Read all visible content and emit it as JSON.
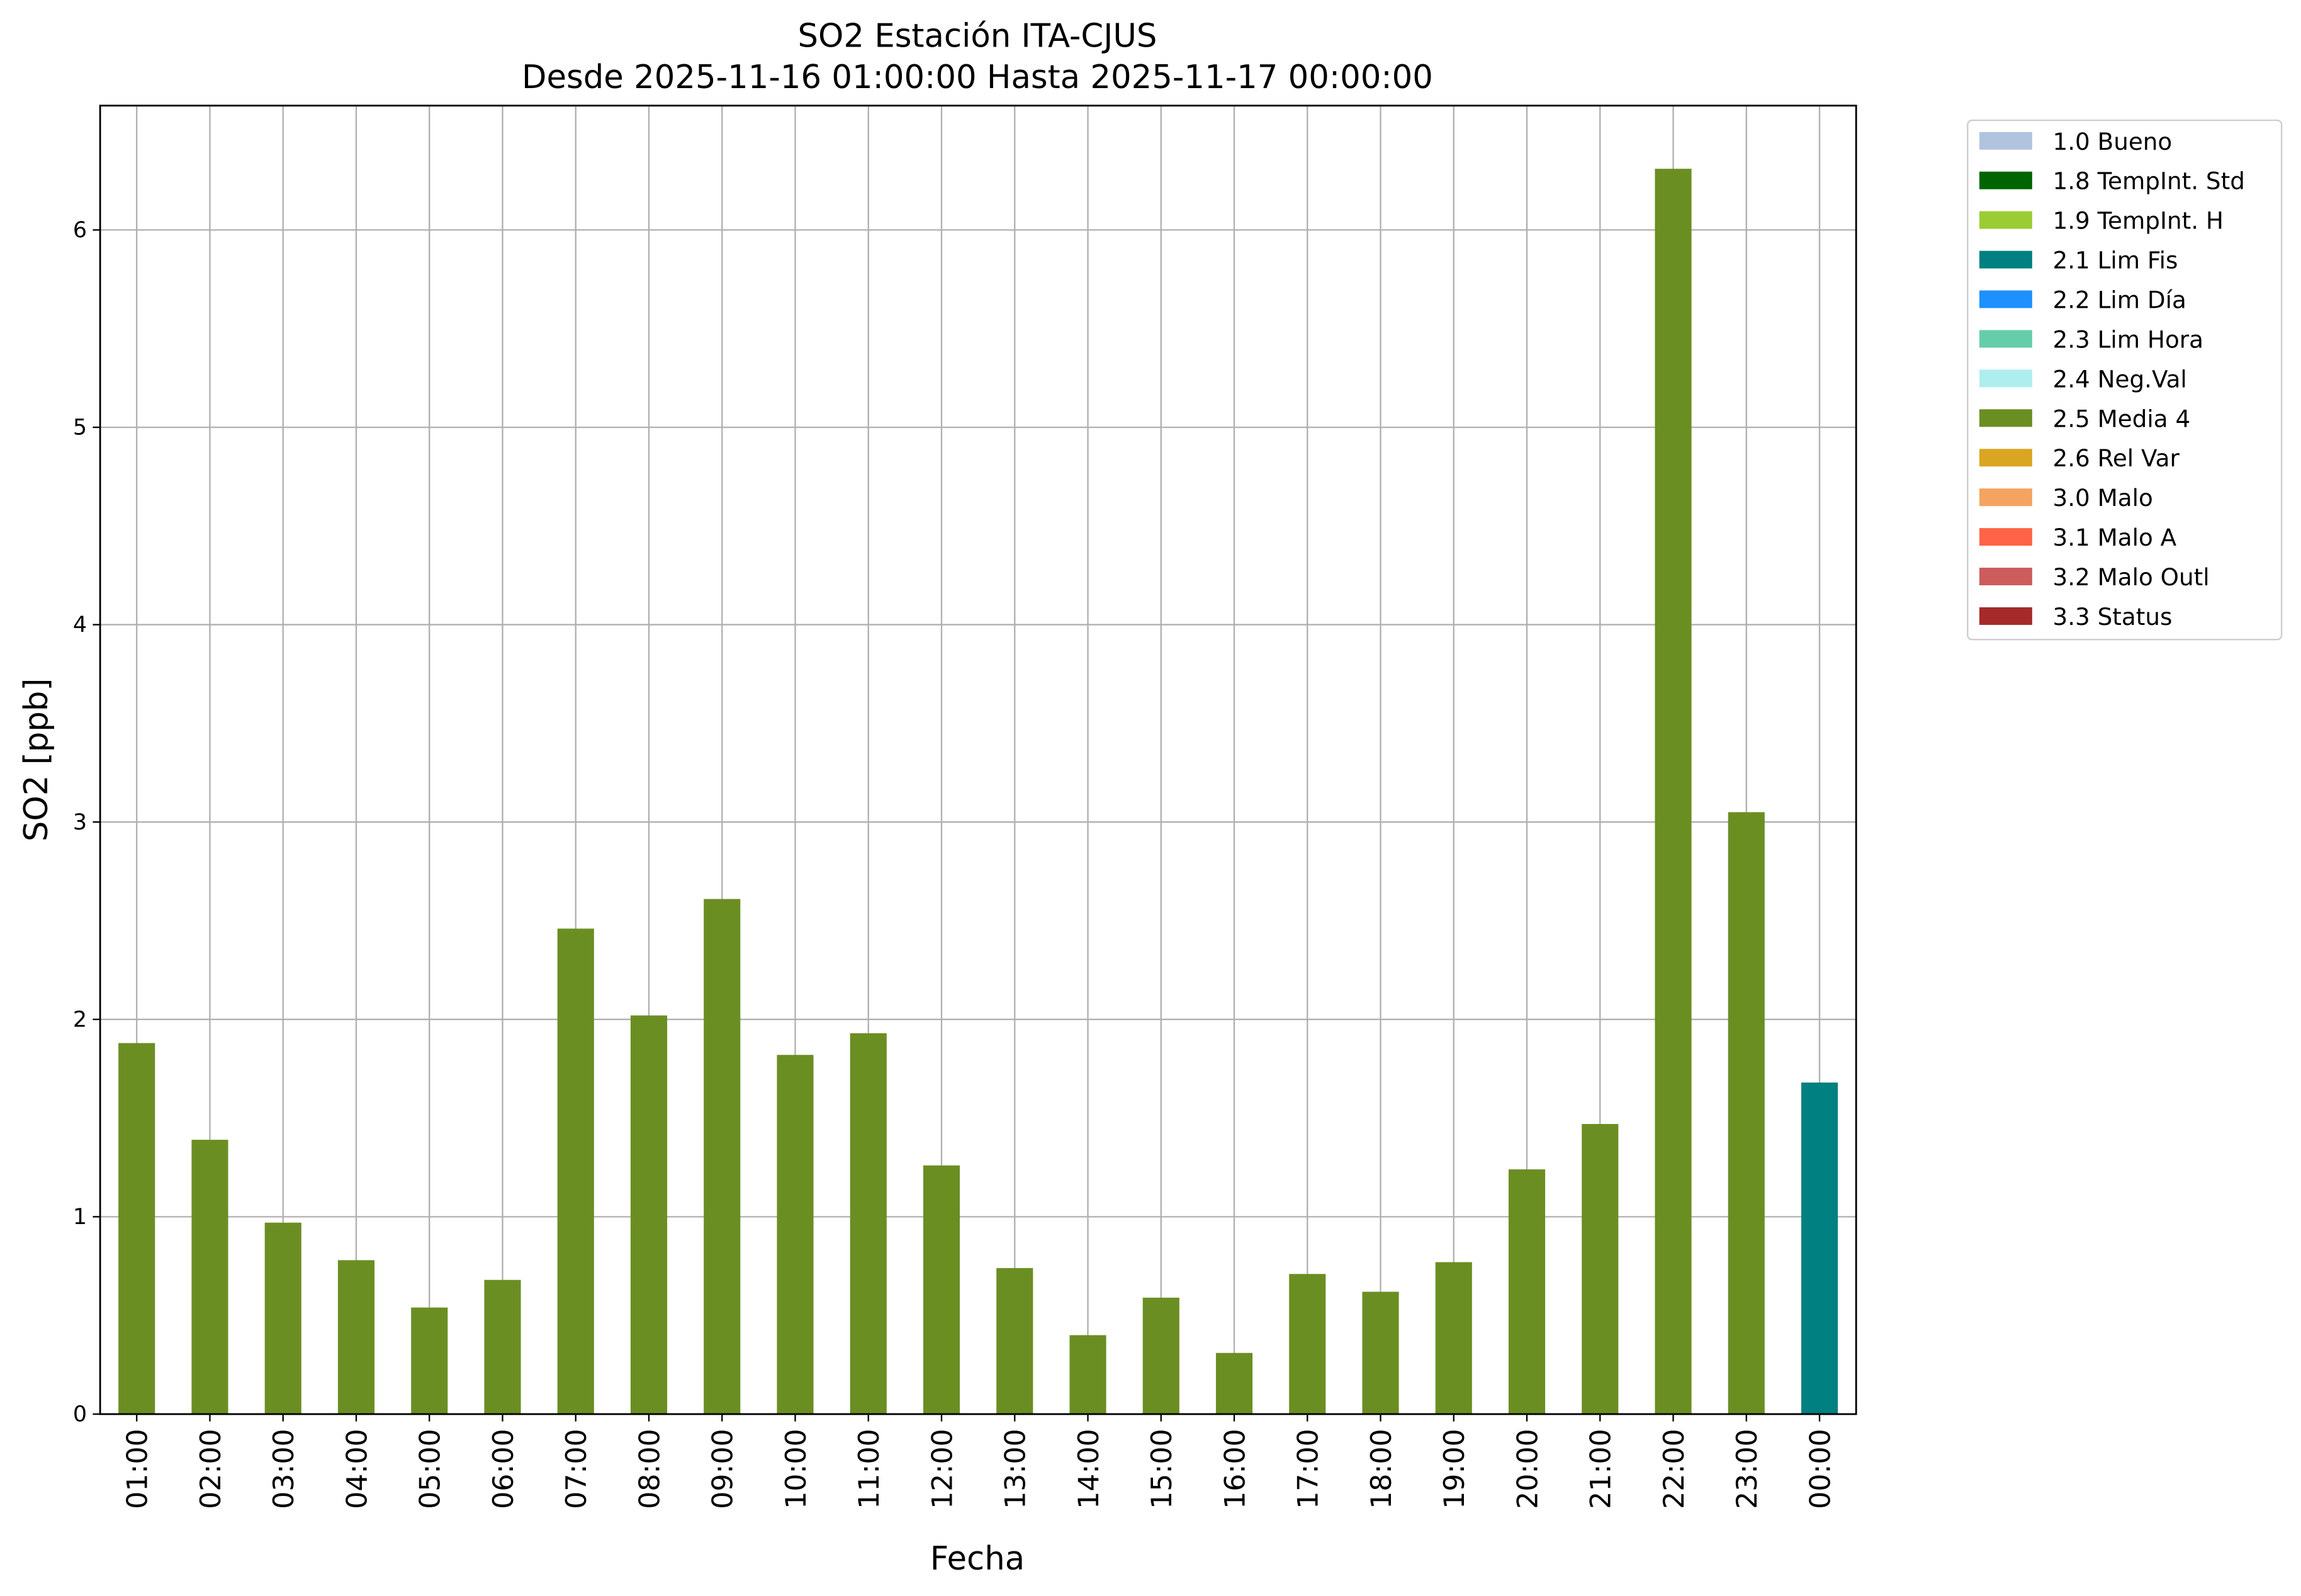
{
  "chart_data": {
    "type": "bar",
    "stacked": true,
    "title": "SO2 Estación ITA-CJUS",
    "subtitle": "Desde 2025-11-16 01:00:00 Hasta 2025-11-17 00:00:00",
    "x_label": "Fecha",
    "y_label": "SO2 [ppb]",
    "categories": [
      "01:00",
      "02:00",
      "03:00",
      "04:00",
      "05:00",
      "06:00",
      "07:00",
      "08:00",
      "09:00",
      "10:00",
      "11:00",
      "12:00",
      "13:00",
      "14:00",
      "15:00",
      "16:00",
      "17:00",
      "18:00",
      "19:00",
      "20:00",
      "21:00",
      "22:00",
      "23:00",
      "00:00"
    ],
    "ylim": [
      0,
      6.63
    ],
    "yticks": [
      0,
      1,
      2,
      3,
      4,
      5,
      6
    ],
    "grid": true,
    "legend": "outside-upper-right",
    "series": [
      {
        "name": "1.0 Bueno",
        "color": "#b0c4de",
        "values": [
          null,
          null,
          null,
          null,
          null,
          null,
          null,
          null,
          null,
          null,
          null,
          null,
          null,
          null,
          null,
          null,
          null,
          null,
          null,
          null,
          null,
          null,
          null,
          null
        ]
      },
      {
        "name": "1.8 TempInt. Std",
        "color": "#006400",
        "values": [
          null,
          null,
          null,
          null,
          null,
          null,
          null,
          null,
          null,
          null,
          null,
          null,
          null,
          null,
          null,
          null,
          null,
          null,
          null,
          null,
          null,
          null,
          null,
          null
        ]
      },
      {
        "name": "1.9 TempInt. H",
        "color": "#9acd32",
        "values": [
          null,
          null,
          null,
          null,
          null,
          null,
          null,
          null,
          null,
          null,
          null,
          null,
          null,
          null,
          null,
          null,
          null,
          null,
          null,
          null,
          null,
          null,
          null,
          null
        ]
      },
      {
        "name": "2.1 Lim Fis",
        "color": "#008080",
        "values": [
          null,
          null,
          null,
          null,
          null,
          null,
          null,
          null,
          null,
          null,
          null,
          null,
          null,
          null,
          null,
          null,
          null,
          null,
          null,
          null,
          null,
          null,
          null,
          1.68
        ]
      },
      {
        "name": "2.2 Lim Día",
        "color": "#1e90ff",
        "values": [
          null,
          null,
          null,
          null,
          null,
          null,
          null,
          null,
          null,
          null,
          null,
          null,
          null,
          null,
          null,
          null,
          null,
          null,
          null,
          null,
          null,
          null,
          null,
          null
        ]
      },
      {
        "name": "2.3 Lim Hora",
        "color": "#66cdaa",
        "values": [
          null,
          null,
          null,
          null,
          null,
          null,
          null,
          null,
          null,
          null,
          null,
          null,
          null,
          null,
          null,
          null,
          null,
          null,
          null,
          null,
          null,
          null,
          null,
          null
        ]
      },
      {
        "name": "2.4 Neg.Val",
        "color": "#afeeee",
        "values": [
          null,
          null,
          null,
          null,
          null,
          null,
          null,
          null,
          null,
          null,
          null,
          null,
          null,
          null,
          null,
          null,
          null,
          null,
          null,
          null,
          null,
          null,
          null,
          null
        ]
      },
      {
        "name": "2.5 Media 4",
        "color": "#6b8e23",
        "values": [
          1.88,
          1.39,
          0.97,
          0.78,
          0.54,
          0.68,
          2.46,
          2.02,
          2.61,
          1.82,
          1.93,
          1.26,
          0.74,
          0.4,
          0.59,
          0.31,
          0.71,
          0.62,
          0.77,
          1.24,
          1.47,
          6.31,
          3.05,
          null
        ]
      },
      {
        "name": "2.6 Rel Var",
        "color": "#daa520",
        "values": [
          null,
          null,
          null,
          null,
          null,
          null,
          null,
          null,
          null,
          null,
          null,
          null,
          null,
          null,
          null,
          null,
          null,
          null,
          null,
          null,
          null,
          null,
          null,
          null
        ]
      },
      {
        "name": "3.0 Malo",
        "color": "#f4a460",
        "values": [
          null,
          null,
          null,
          null,
          null,
          null,
          null,
          null,
          null,
          null,
          null,
          null,
          null,
          null,
          null,
          null,
          null,
          null,
          null,
          null,
          null,
          null,
          null,
          null
        ]
      },
      {
        "name": "3.1 Malo A",
        "color": "#ff6347",
        "values": [
          null,
          null,
          null,
          null,
          null,
          null,
          null,
          null,
          null,
          null,
          null,
          null,
          null,
          null,
          null,
          null,
          null,
          null,
          null,
          null,
          null,
          null,
          null,
          null
        ]
      },
      {
        "name": "3.2 Malo Outl",
        "color": "#cd5c5c",
        "values": [
          null,
          null,
          null,
          null,
          null,
          null,
          null,
          null,
          null,
          null,
          null,
          null,
          null,
          null,
          null,
          null,
          null,
          null,
          null,
          null,
          null,
          null,
          null,
          null
        ]
      },
      {
        "name": "3.3 Status",
        "color": "#a52a2a",
        "values": [
          null,
          null,
          null,
          null,
          null,
          null,
          null,
          null,
          null,
          null,
          null,
          null,
          null,
          null,
          null,
          null,
          null,
          null,
          null,
          null,
          null,
          null,
          null,
          null
        ]
      }
    ]
  }
}
